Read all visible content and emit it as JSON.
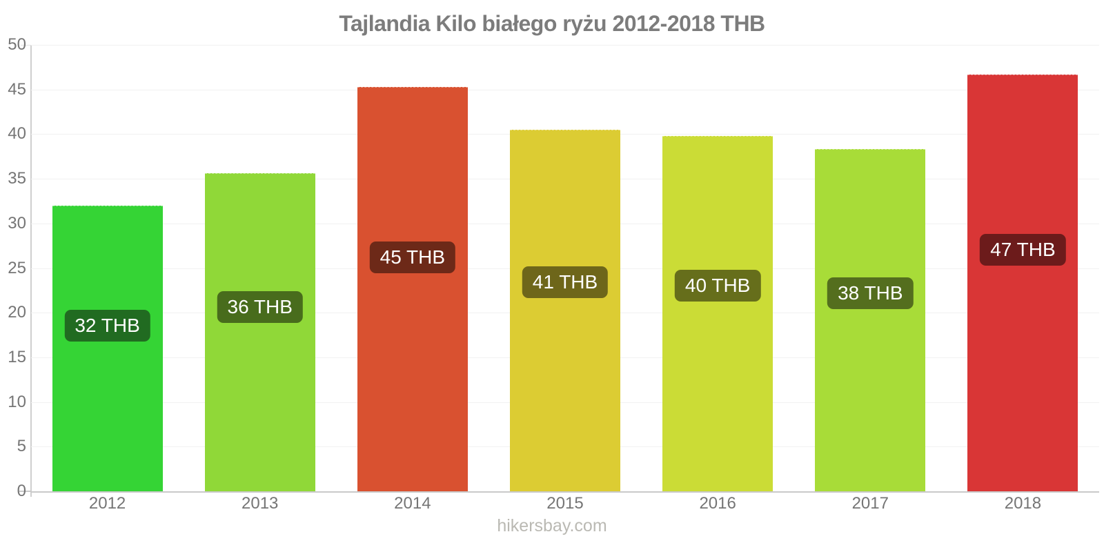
{
  "footer": {
    "site": "hikersbay.com"
  },
  "chart_data": {
    "type": "bar",
    "title": "Tajlandia Kilo białego ryżu 2012-2018 THB",
    "xlabel": "",
    "ylabel": "",
    "ylim": [
      0,
      50
    ],
    "yticks": [
      0,
      5,
      10,
      15,
      20,
      25,
      30,
      35,
      40,
      45,
      50
    ],
    "grid": "horizontal",
    "legend": "none",
    "categories": [
      "2012",
      "2013",
      "2014",
      "2015",
      "2016",
      "2017",
      "2018"
    ],
    "values": [
      32,
      36,
      45,
      41,
      40,
      38,
      47
    ],
    "points": [
      {
        "year": "2012",
        "value": 32,
        "value_precise": 32.0,
        "label": "32 THB",
        "color": "#35d435",
        "badge": "#216b21"
      },
      {
        "year": "2013",
        "value": 36,
        "value_precise": 35.6,
        "label": "36 THB",
        "color": "#90d838",
        "badge": "#486c1c"
      },
      {
        "year": "2014",
        "value": 45,
        "value_precise": 45.3,
        "label": "45 THB",
        "color": "#d95130",
        "badge": "#6d2918"
      },
      {
        "year": "2015",
        "value": 41,
        "value_precise": 40.5,
        "label": "41 THB",
        "color": "#dccc33",
        "badge": "#6e661a"
      },
      {
        "year": "2016",
        "value": 40,
        "value_precise": 39.8,
        "label": "40 THB",
        "color": "#cbdc36",
        "badge": "#666e1b"
      },
      {
        "year": "2017",
        "value": 38,
        "value_precise": 38.3,
        "label": "38 THB",
        "color": "#a8dc38",
        "badge": "#546e1e"
      },
      {
        "year": "2018",
        "value": 47,
        "value_precise": 46.7,
        "label": "47 THB",
        "color": "#d93636",
        "badge": "#6c1b1b"
      }
    ],
    "currency": "THB",
    "text_color": "#757575",
    "axis_color": "#c9c9c9",
    "grid_color": "#f1f1f1",
    "watermark_color": "#bab9b3"
  }
}
